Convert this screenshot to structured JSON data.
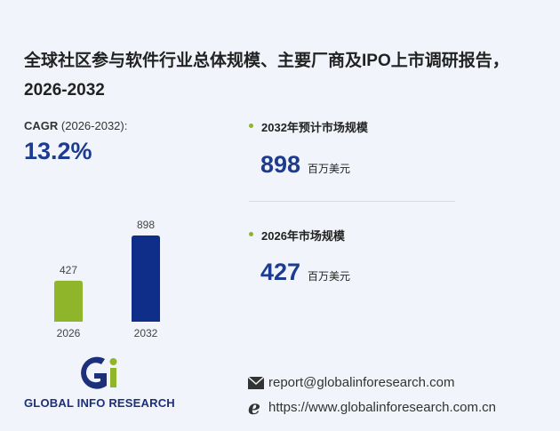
{
  "title": "全球社区参与软件行业总体规模、主要厂商及IPO上市调研报告，2026-2032",
  "cagr": {
    "label": "CAGR",
    "period": "(2026-2032):",
    "value": "13.2%"
  },
  "chart_data": {
    "type": "bar",
    "categories": [
      "2026",
      "2032"
    ],
    "values": [
      427,
      898
    ],
    "colors": [
      "#8fb52a",
      "#0f2e8a"
    ]
  },
  "stats": [
    {
      "label": "2032年预计市场规模",
      "value": "898",
      "unit": "百万美元"
    },
    {
      "label": "2026年市场规模",
      "value": "427",
      "unit": "百万美元"
    }
  ],
  "logo": "GLOBAL INFO RESEARCH",
  "contact": {
    "email": "report@globalinforesearch.com",
    "website": "https://www.globalinforesearch.com.cn"
  }
}
